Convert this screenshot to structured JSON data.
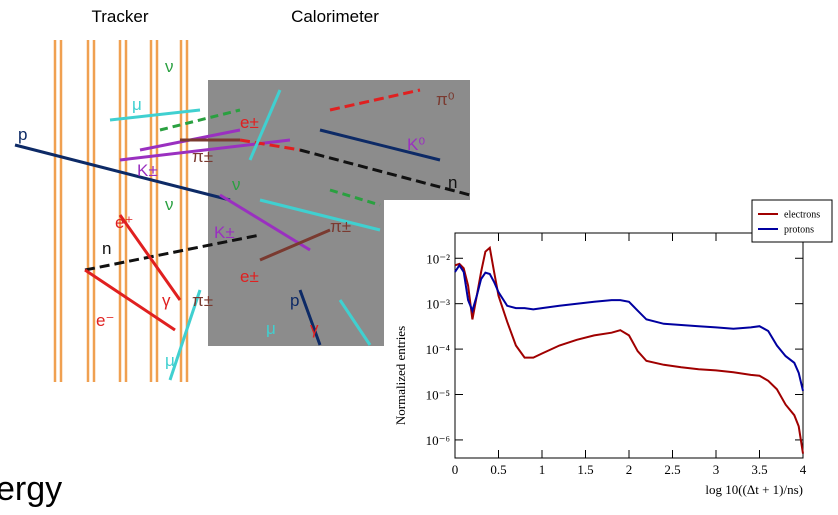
{
  "diagram": {
    "titles": [
      "Tracker",
      "Calorimeter"
    ],
    "labels": [
      "p",
      "ν",
      "μ",
      "e±",
      "π±",
      "K±",
      "π⁰",
      "K⁰",
      "n",
      "ν",
      "ν",
      "e⁺",
      "K±",
      "π±",
      "n",
      "e±",
      "γ",
      "π±",
      "e⁻",
      "μ",
      "p",
      "γ",
      "μ"
    ]
  },
  "slide_fragment": "ergy",
  "chart_data": {
    "type": "line",
    "y_label": "Normalized entries",
    "x_label": "log 10((Δt + 1)/ns)",
    "log_y": true,
    "legend": "upper right",
    "x": [
      0,
      0.05,
      0.1,
      0.15,
      0.2,
      0.25,
      0.3,
      0.35,
      0.4,
      0.45,
      0.5,
      0.6,
      0.7,
      0.8,
      0.9,
      1.0,
      1.2,
      1.4,
      1.6,
      1.8,
      1.9,
      2.0,
      2.1,
      2.2,
      2.4,
      2.6,
      2.8,
      3.0,
      3.2,
      3.4,
      3.5,
      3.6,
      3.7,
      3.8,
      3.9,
      3.95,
      4.0
    ],
    "series": [
      {
        "name": "electrons",
        "color": "#a00000",
        "values": [
          0.007,
          0.0075,
          0.006,
          0.0025,
          0.00045,
          0.0015,
          0.005,
          0.014,
          0.017,
          0.005,
          0.0015,
          0.0004,
          0.00012,
          6.5e-05,
          6.5e-05,
          8e-05,
          0.00012,
          0.00016,
          0.0002,
          0.00023,
          0.00026,
          0.0002,
          9e-05,
          5.5e-05,
          4.5e-05,
          4e-05,
          3.6e-05,
          3.4e-05,
          3.1e-05,
          2.7e-05,
          2.6e-05,
          2e-05,
          1.3e-05,
          6e-06,
          3.5e-06,
          2e-06,
          5e-07
        ]
      },
      {
        "name": "protons",
        "color": "#0000a0",
        "values": [
          0.005,
          0.007,
          0.005,
          0.0012,
          0.0007,
          0.0015,
          0.0035,
          0.0048,
          0.0045,
          0.003,
          0.0018,
          0.0009,
          0.0008,
          0.0008,
          0.00075,
          0.0008,
          0.0009,
          0.001,
          0.0011,
          0.0012,
          0.0012,
          0.0011,
          0.0007,
          0.00045,
          0.00036,
          0.00034,
          0.00032,
          0.0003,
          0.00028,
          0.0003,
          0.00032,
          0.00025,
          0.00012,
          7e-05,
          5e-05,
          3e-05,
          1.2e-05
        ]
      }
    ],
    "xlim": [
      0,
      4
    ],
    "xticks": [
      0,
      0.5,
      1,
      1.5,
      2,
      2.5,
      3,
      3.5,
      4
    ],
    "ylim": [
      4e-07,
      0.036
    ],
    "yticks": [
      {
        "value": 1e-06,
        "label": "10⁻⁶"
      },
      {
        "value": 1e-05,
        "label": "10⁻⁵"
      },
      {
        "value": 0.0001,
        "label": "10⁻⁴"
      },
      {
        "value": 0.001,
        "label": "10⁻³"
      },
      {
        "value": 0.01,
        "label": "10⁻²"
      }
    ]
  }
}
